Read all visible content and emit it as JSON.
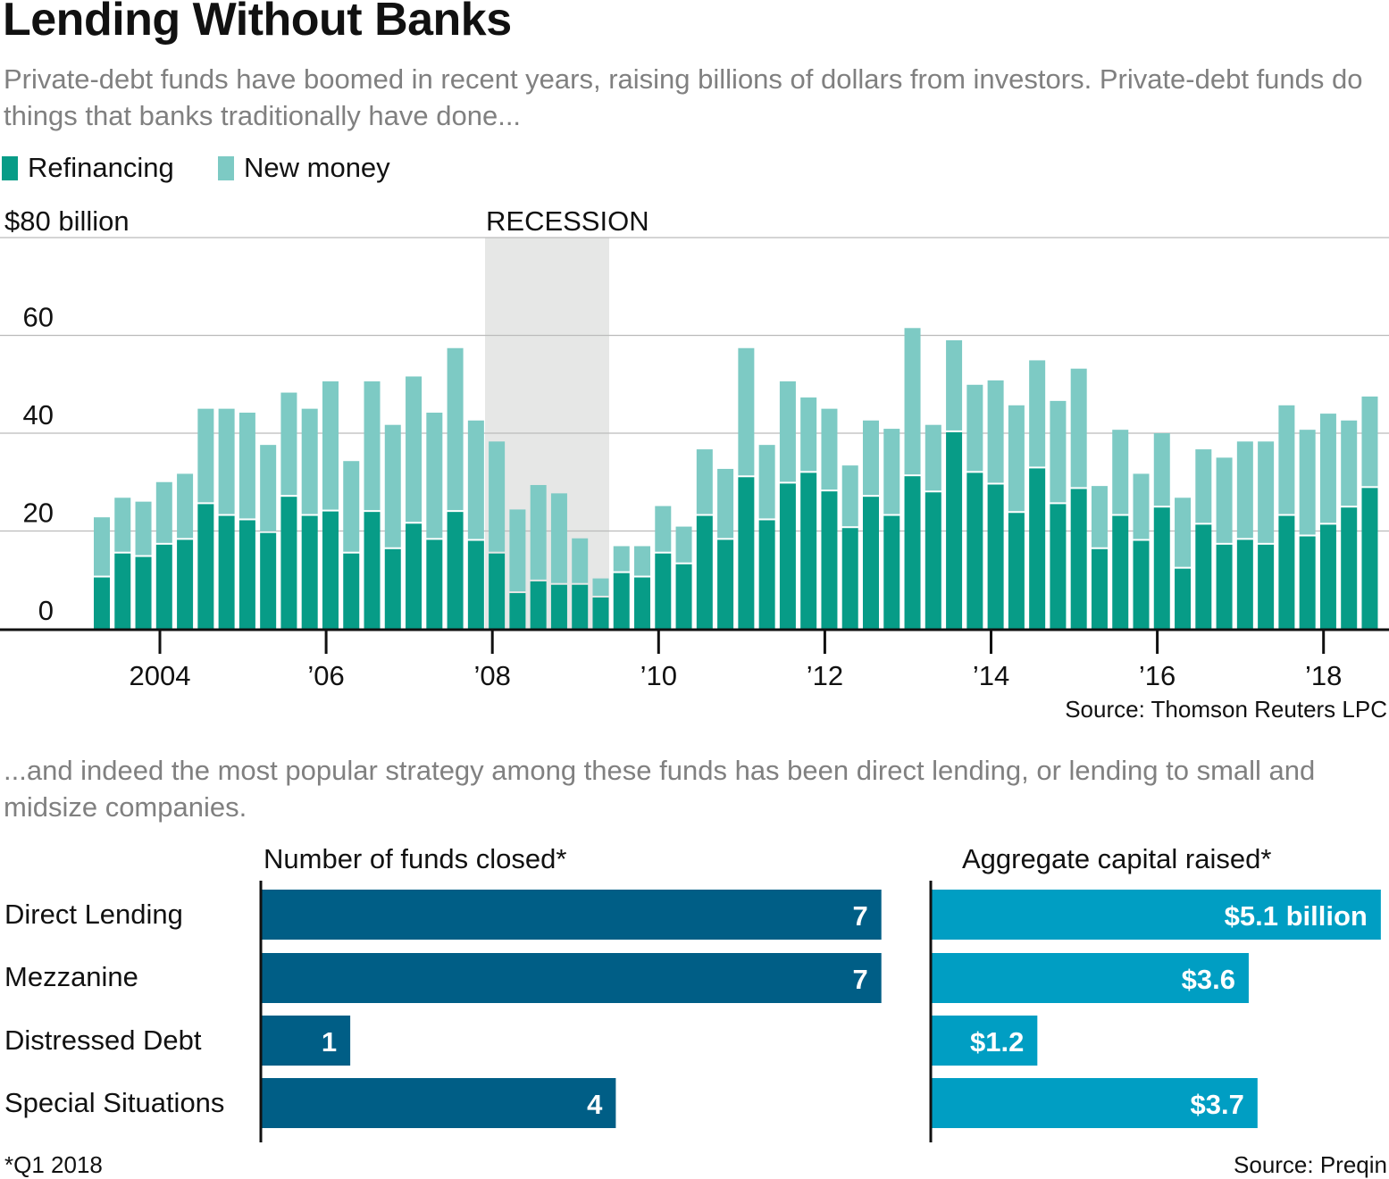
{
  "title": "Lending Without Banks",
  "subtitle_top": "Private-debt funds have boomed in recent years, raising billions of dollars from investors. Private-debt funds do things that banks traditionally have done...",
  "subtitle_bottom": "...and indeed the most popular strategy among these funds has been direct lending, or lending to small and midsize companies.",
  "colors": {
    "refinancing": "#079c87",
    "new_money": "#7dcac4",
    "recession": "#e6e7e6",
    "funds": "#005e86",
    "capital": "#009ec3"
  },
  "chart_data": [
    {
      "type": "bar",
      "stacked": true,
      "legend": [
        "Refinancing",
        "New money"
      ],
      "legend_placement": "top-left",
      "y_unit_label": "$80 billion",
      "ylim": [
        0,
        80
      ],
      "y_ticks": [
        "0",
        "20",
        "40",
        "60"
      ],
      "x_ticks": [
        "2004",
        "’06",
        "’08",
        "’10",
        "’12",
        "’14",
        "’16",
        "’18"
      ],
      "annotation": "RECESSION",
      "recession_span": [
        "2007 Q4",
        "2009 Q2"
      ],
      "grid": true,
      "source": "Source: Thomson Reuters LPC",
      "first_quarter": "2003 Q2",
      "series": [
        {
          "name": "Refinancing",
          "values": [
            10.5,
            15.4,
            14.7,
            17.2,
            18.2,
            25.5,
            23.1,
            22.2,
            19.6,
            27,
            23.1,
            24,
            15.4,
            23.9,
            16.3,
            21.5,
            18.2,
            23.9,
            18,
            15.4,
            7.3,
            9.7,
            9,
            9,
            6.4,
            11.4,
            10.5,
            15.4,
            13.2,
            23.1,
            18.2,
            31,
            22.2,
            29.7,
            31.9,
            28.1,
            20.6,
            27,
            23.1,
            31.2,
            27.9,
            40.2,
            31.9,
            29.5,
            23.7,
            32.8,
            25.5,
            28.6,
            16.3,
            23.1,
            18,
            24.8,
            12.3,
            21.3,
            17.2,
            18.2,
            17.2,
            23.1,
            18.9,
            21.3,
            24.8,
            28.8
          ]
        },
        {
          "name": "New money",
          "values": [
            12.3,
            11.4,
            11.3,
            12.8,
            13.5,
            19.5,
            21.9,
            22,
            18,
            21.3,
            21.9,
            26.6,
            18.9,
            26.7,
            25.4,
            30.1,
            26,
            33.5,
            24.6,
            22.9,
            17.1,
            19.7,
            18.7,
            9.5,
            3.9,
            5.5,
            6.4,
            9.7,
            7.7,
            13.6,
            14.5,
            26.4,
            15.4,
            20.9,
            15.4,
            16.9,
            12.8,
            15.6,
            17.8,
            30.3,
            13.8,
            18.8,
            18,
            21.3,
            22,
            22.1,
            21.1,
            24.6,
            12.9,
            17.6,
            13.7,
            15.2,
            14.5,
            15.4,
            17.8,
            20.1,
            21.1,
            22.6,
            21.8,
            22.7,
            17.8,
            18.7
          ]
        }
      ]
    },
    {
      "type": "bar",
      "orientation": "horizontal",
      "title": "Number of funds closed*",
      "categories": [
        "Direct Lending",
        "Mezzanine",
        "Distressed Debt",
        "Special Situations"
      ],
      "values": [
        7,
        7,
        1,
        4
      ],
      "labels": [
        "7",
        "7",
        "1",
        "4"
      ]
    },
    {
      "type": "bar",
      "orientation": "horizontal",
      "title": "Aggregate capital raised*",
      "categories": [
        "Direct Lending",
        "Mezzanine",
        "Distressed Debt",
        "Special Situations"
      ],
      "values": [
        5.1,
        3.6,
        1.2,
        3.7
      ],
      "unit": "billion dollars",
      "labels": [
        "$5.1 billion",
        "$3.6",
        "$1.2",
        "$3.7"
      ]
    }
  ],
  "footnote": "*Q1 2018",
  "source_bottom": "Source: Preqin"
}
